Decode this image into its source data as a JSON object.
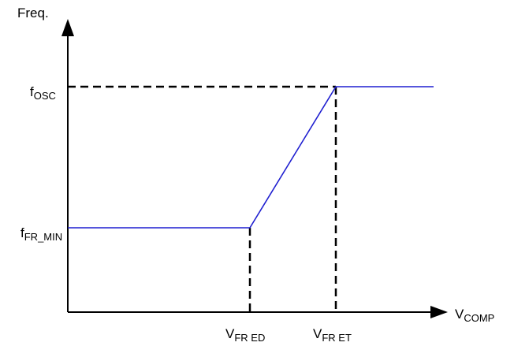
{
  "axes": {
    "y_label": "Freq.",
    "x_label": {
      "main": "V",
      "sub": "COMP"
    }
  },
  "y_ticks": [
    {
      "main": "f",
      "sub": "OSC"
    },
    {
      "main": "f",
      "sub": "FR_MIN"
    }
  ],
  "x_ticks": [
    {
      "main": "V",
      "sub": "FR_ED"
    },
    {
      "main": "V",
      "sub": "FR_ET"
    }
  ],
  "colors": {
    "curve": "#1f1fd0",
    "axis": "#000000",
    "guide": "#000000"
  },
  "curve_shape": [
    "flat at f_FR_MIN",
    "linear rise from V_FR_ED to V_FR_ET",
    "flat at f_OSC"
  ]
}
